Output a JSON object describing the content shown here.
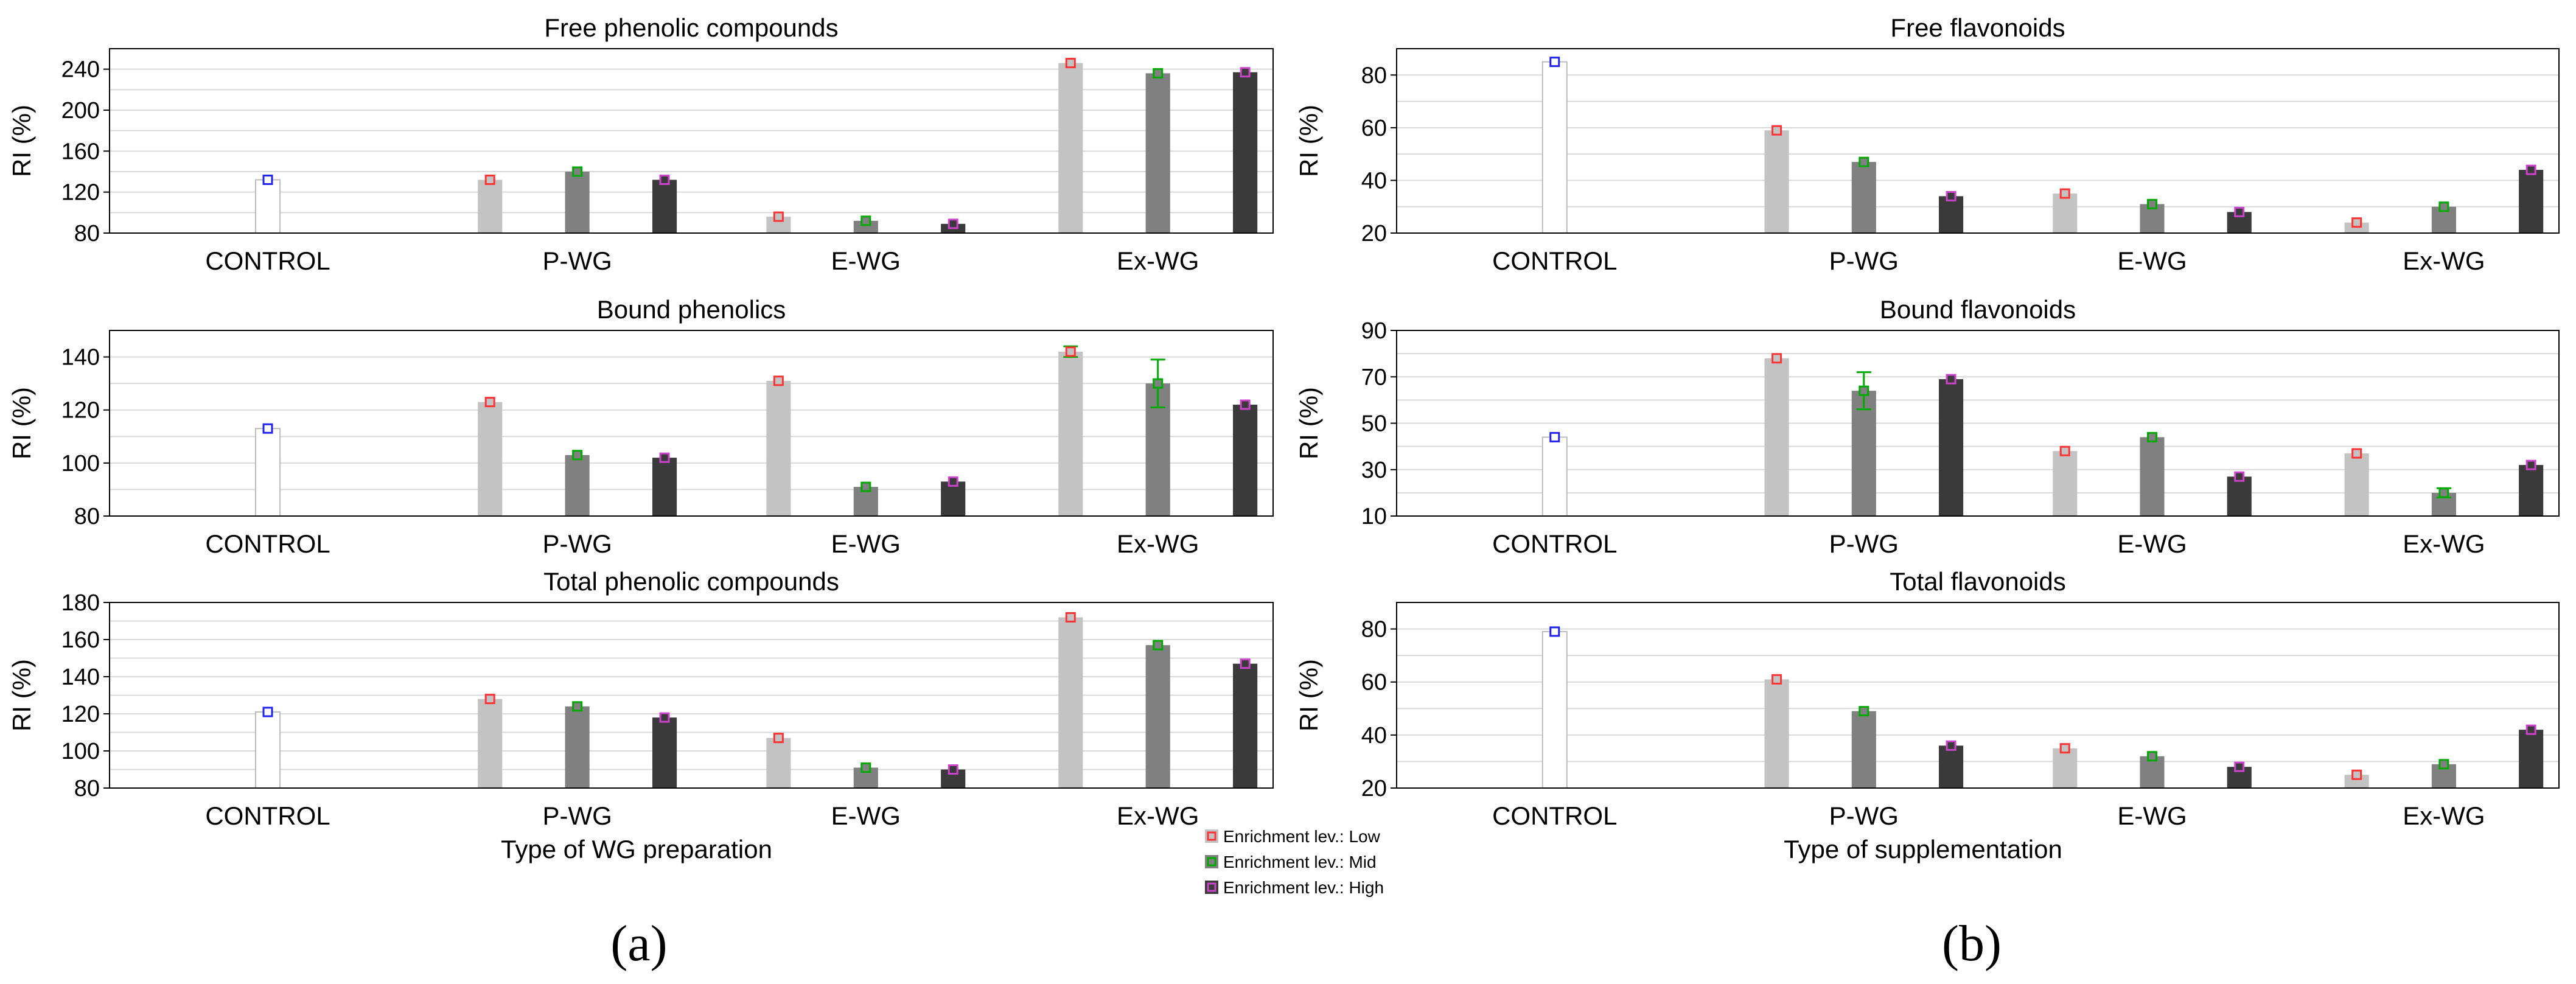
{
  "figure": {
    "panel_labels": [
      "(a)",
      "(b)"
    ],
    "legend": [
      {
        "label": "Enrichment lev.: Low",
        "marker_color": "#ff3333",
        "fill": "#c3c3c3"
      },
      {
        "label": "Enrichment lev.: Mid",
        "marker_color": "#00aa00",
        "fill": "#808080"
      },
      {
        "label": "Enrichment lev.: High",
        "marker_color": "#cc44cc",
        "fill": "#3a3a3a"
      }
    ],
    "control_marker_color": "#2222ee"
  },
  "chart_data": [
    {
      "type": "bar",
      "title": "Free phenolic compounds",
      "ylabel": "RI (%)",
      "xlabel": "",
      "ylim": [
        80,
        260
      ],
      "yticks": [
        80,
        120,
        160,
        200,
        240
      ],
      "grid": true,
      "categories": [
        "CONTROL",
        "P-WG",
        "E-WG",
        "Ex-WG"
      ],
      "control": 132,
      "series": [
        {
          "name": "Enrichment lev.: Low",
          "values": [
            null,
            132,
            96,
            246
          ]
        },
        {
          "name": "Enrichment lev.: Mid",
          "values": [
            null,
            140,
            92,
            236
          ]
        },
        {
          "name": "Enrichment lev.: High",
          "values": [
            null,
            132,
            89,
            237
          ]
        }
      ]
    },
    {
      "type": "bar",
      "title": "Bound phenolics",
      "ylabel": "RI (%)",
      "xlabel": "",
      "ylim": [
        80,
        150
      ],
      "yticks": [
        80,
        100,
        120,
        140
      ],
      "grid": true,
      "categories": [
        "CONTROL",
        "P-WG",
        "E-WG",
        "Ex-WG"
      ],
      "control": 113,
      "series": [
        {
          "name": "Enrichment lev.: Low",
          "values": [
            null,
            123,
            131,
            142
          ],
          "errors": [
            null,
            0,
            0,
            2
          ]
        },
        {
          "name": "Enrichment lev.: Mid",
          "values": [
            null,
            103,
            91,
            130
          ],
          "errors": [
            null,
            0,
            0,
            9
          ]
        },
        {
          "name": "Enrichment lev.: High",
          "values": [
            null,
            102,
            93,
            122
          ]
        }
      ]
    },
    {
      "type": "bar",
      "title": "Total phenolic compounds",
      "ylabel": "RI (%)",
      "xlabel": "Type of WG preparation",
      "ylim": [
        80,
        180
      ],
      "yticks": [
        80,
        100,
        120,
        140,
        160,
        180
      ],
      "grid": true,
      "categories": [
        "CONTROL",
        "P-WG",
        "E-WG",
        "Ex-WG"
      ],
      "control": 121,
      "series": [
        {
          "name": "Enrichment lev.: Low",
          "values": [
            null,
            128,
            107,
            172
          ]
        },
        {
          "name": "Enrichment lev.: Mid",
          "values": [
            null,
            124,
            91,
            157
          ]
        },
        {
          "name": "Enrichment lev.: High",
          "values": [
            null,
            118,
            90,
            147
          ]
        }
      ]
    },
    {
      "type": "bar",
      "title": "Free flavonoids",
      "ylabel": "RI (%)",
      "xlabel": "",
      "ylim": [
        20,
        90
      ],
      "yticks": [
        20,
        40,
        60,
        80
      ],
      "grid": true,
      "categories": [
        "CONTROL",
        "P-WG",
        "E-WG",
        "Ex-WG"
      ],
      "control": 85,
      "series": [
        {
          "name": "Enrichment lev.: Low",
          "values": [
            null,
            59,
            35,
            24
          ]
        },
        {
          "name": "Enrichment lev.: Mid",
          "values": [
            null,
            47,
            31,
            30
          ]
        },
        {
          "name": "Enrichment lev.: High",
          "values": [
            null,
            34,
            28,
            44
          ]
        }
      ]
    },
    {
      "type": "bar",
      "title": "Bound flavonoids",
      "ylabel": "RI (%)",
      "xlabel": "",
      "ylim": [
        10,
        90
      ],
      "yticks": [
        10,
        30,
        50,
        70,
        90
      ],
      "grid": true,
      "categories": [
        "CONTROL",
        "P-WG",
        "E-WG",
        "Ex-WG"
      ],
      "control": 44,
      "series": [
        {
          "name": "Enrichment lev.: Low",
          "values": [
            null,
            78,
            38,
            37
          ]
        },
        {
          "name": "Enrichment lev.: Mid",
          "values": [
            null,
            64,
            44,
            20
          ],
          "errors": [
            null,
            8,
            0,
            2
          ]
        },
        {
          "name": "Enrichment lev.: High",
          "values": [
            null,
            69,
            27,
            32
          ]
        }
      ]
    },
    {
      "type": "bar",
      "title": "Total flavonoids",
      "ylabel": "RI (%)",
      "xlabel": "Type of supplementation",
      "ylim": [
        20,
        90
      ],
      "yticks": [
        20,
        40,
        60,
        80
      ],
      "grid": true,
      "categories": [
        "CONTROL",
        "P-WG",
        "E-WG",
        "Ex-WG"
      ],
      "control": 79,
      "series": [
        {
          "name": "Enrichment lev.: Low",
          "values": [
            null,
            61,
            35,
            25
          ]
        },
        {
          "name": "Enrichment lev.: Mid",
          "values": [
            null,
            49,
            32,
            29
          ]
        },
        {
          "name": "Enrichment lev.: High",
          "values": [
            null,
            36,
            28,
            42
          ]
        }
      ]
    }
  ]
}
